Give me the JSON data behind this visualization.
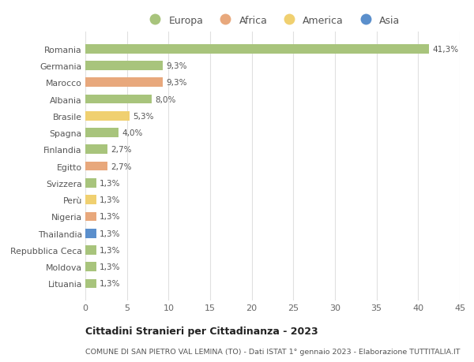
{
  "countries": [
    "Romania",
    "Germania",
    "Marocco",
    "Albania",
    "Brasile",
    "Spagna",
    "Finlandia",
    "Egitto",
    "Svizzera",
    "Perù",
    "Nigeria",
    "Thailandia",
    "Repubblica Ceca",
    "Moldova",
    "Lituania"
  ],
  "values": [
    41.3,
    9.3,
    9.3,
    8.0,
    5.3,
    4.0,
    2.7,
    2.7,
    1.3,
    1.3,
    1.3,
    1.3,
    1.3,
    1.3,
    1.3
  ],
  "labels": [
    "41,3%",
    "9,3%",
    "9,3%",
    "8,0%",
    "5,3%",
    "4,0%",
    "2,7%",
    "2,7%",
    "1,3%",
    "1,3%",
    "1,3%",
    "1,3%",
    "1,3%",
    "1,3%",
    "1,3%"
  ],
  "continents": [
    "Europa",
    "Europa",
    "Africa",
    "Europa",
    "America",
    "Europa",
    "Europa",
    "Africa",
    "Europa",
    "America",
    "Africa",
    "Asia",
    "Europa",
    "Europa",
    "Europa"
  ],
  "colors": {
    "Europa": "#a8c47c",
    "Africa": "#e8a87c",
    "America": "#f0d070",
    "Asia": "#5b8fcc"
  },
  "xlim": [
    0,
    45
  ],
  "xticks": [
    0,
    5,
    10,
    15,
    20,
    25,
    30,
    35,
    40,
    45
  ],
  "title": "Cittadini Stranieri per Cittadinanza - 2023",
  "subtitle": "COMUNE DI SAN PIETRO VAL LEMINA (TO) - Dati ISTAT 1° gennaio 2023 - Elaborazione TUTTITALIA.IT",
  "background_color": "#ffffff",
  "grid_color": "#e0e0e0",
  "bar_height": 0.55,
  "legend_order": [
    "Europa",
    "Africa",
    "America",
    "Asia"
  ]
}
